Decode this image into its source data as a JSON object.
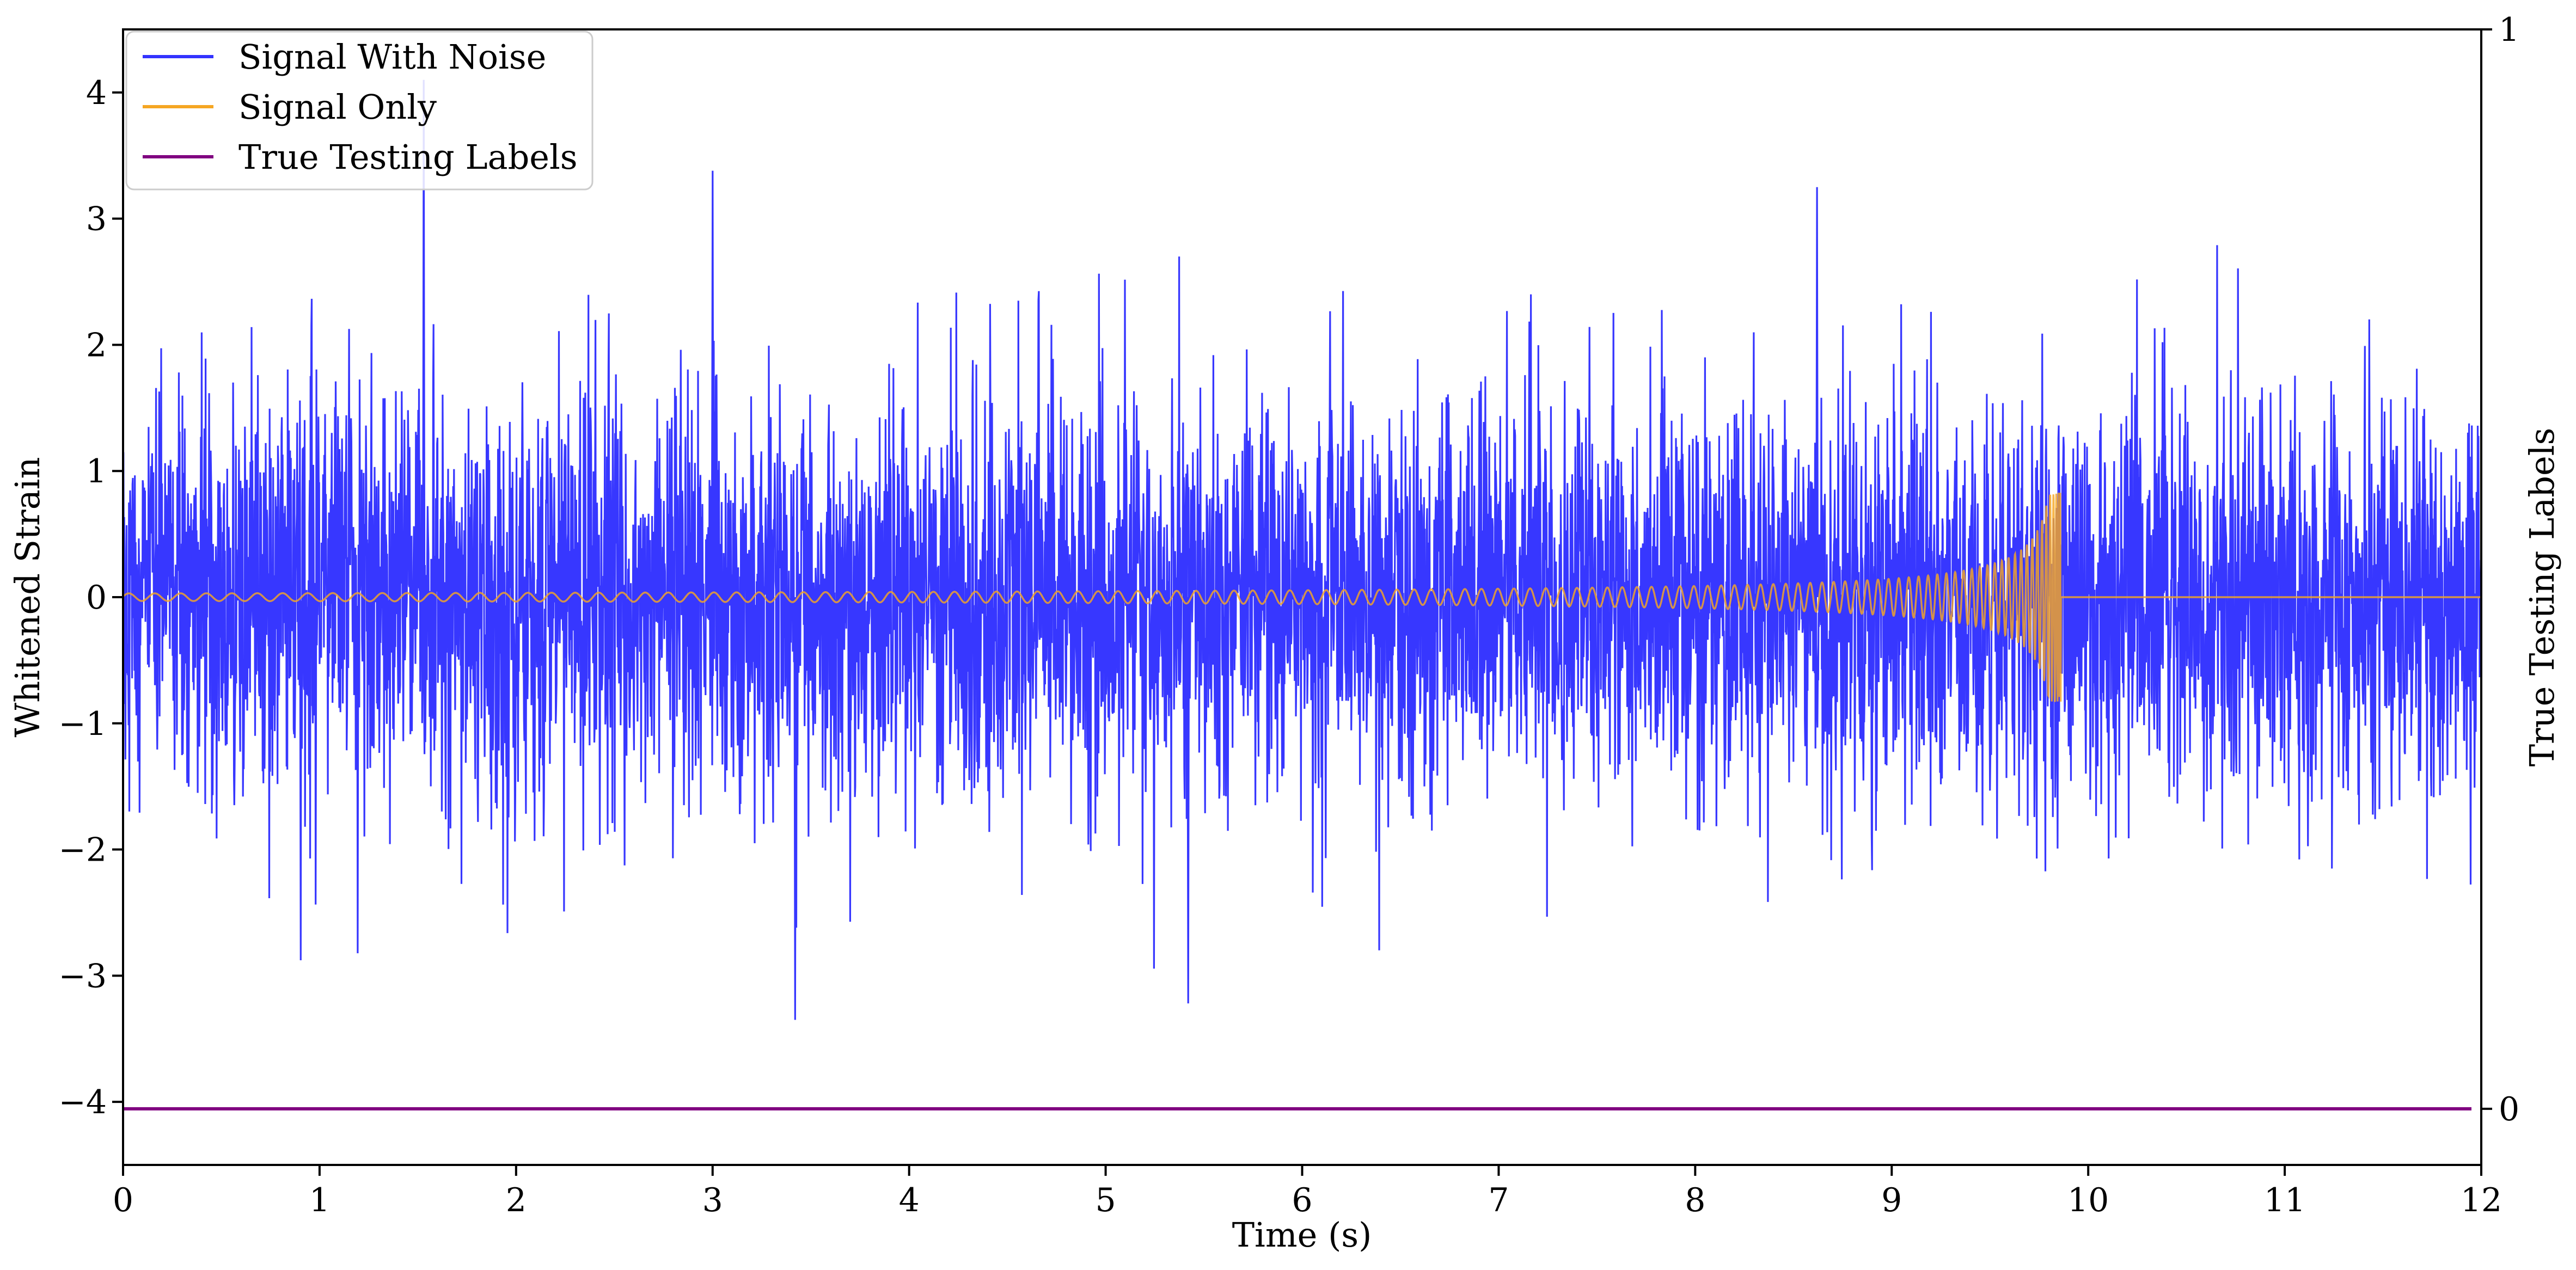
{
  "chart_data": {
    "type": "line",
    "title": "",
    "xlabel": "Time (s)",
    "ylabel": "Whitened Strain",
    "y2label": "True Testing Labels",
    "xlim": [
      0,
      12
    ],
    "ylim": [
      -4.5,
      4.5
    ],
    "y2lim": [
      -0.052,
      1.0
    ],
    "x_ticks": [
      0,
      1,
      2,
      3,
      4,
      5,
      6,
      7,
      8,
      9,
      10,
      11,
      12
    ],
    "y_ticks": [
      -4,
      -3,
      -2,
      -1,
      0,
      1,
      2,
      3,
      4
    ],
    "y2_ticks": [
      0,
      1
    ],
    "grid": false,
    "legend_position": "top-left",
    "series": [
      {
        "name": "Signal With Noise",
        "color": "#3333ff",
        "description": "gaussian whitened noise, std ~0.8, peaks to ~4.1 near t=1.5 and ~-3.3 near t=3.4",
        "x_range": [
          0,
          12
        ],
        "noise_std": 0.8,
        "peaks": [
          {
            "x": 1.53,
            "y": 4.1
          },
          {
            "x": 3.0,
            "y": 3.38
          },
          {
            "x": 8.62,
            "y": 3.25
          },
          {
            "x": 3.42,
            "y": -3.35
          },
          {
            "x": 5.42,
            "y": -3.22
          }
        ]
      },
      {
        "name": "Signal Only",
        "color": "#f5a623",
        "description": "chirp waveform with growing amplitude ending at merger near t=9.86, then zero",
        "merger_time": 9.86,
        "peak_amplitude": 0.83,
        "initial_amplitude": 0.03
      },
      {
        "name": "True Testing Labels",
        "color": "#800080",
        "axis": "right",
        "x": [
          0,
          11.95
        ],
        "y": [
          0,
          0
        ]
      }
    ]
  }
}
